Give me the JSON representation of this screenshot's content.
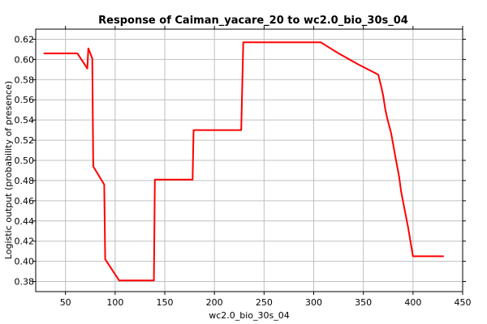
{
  "chart_data": {
    "type": "line",
    "title": "Response of Caiman_yacare_20 to wc2.0_bio_30s_04",
    "xlabel": "wc2.0_bio_30s_04",
    "ylabel": "Logistic output (probability of presence)",
    "xlim": [
      20,
      450
    ],
    "ylim": [
      0.37,
      0.63
    ],
    "x_ticks": [
      50,
      100,
      150,
      200,
      250,
      300,
      350,
      400,
      450
    ],
    "y_ticks": [
      0.38,
      0.4,
      0.42,
      0.44,
      0.46,
      0.48,
      0.5,
      0.52,
      0.54,
      0.56,
      0.58,
      0.6,
      0.62
    ],
    "grid": true,
    "series": [
      {
        "color": "#ff0000",
        "x": [
          28,
          62,
          72,
          73,
          77,
          78,
          89,
          90,
          104,
          139,
          140,
          178,
          179,
          227,
          229,
          307,
          325,
          345,
          365,
          368,
          370,
          372,
          374,
          378,
          382,
          386,
          388,
          395,
          400,
          431
        ],
        "y": [
          0.606,
          0.606,
          0.591,
          0.611,
          0.601,
          0.494,
          0.476,
          0.402,
          0.381,
          0.381,
          0.481,
          0.481,
          0.53,
          0.53,
          0.617,
          0.617,
          0.606,
          0.595,
          0.585,
          0.573,
          0.564,
          0.551,
          0.542,
          0.527,
          0.505,
          0.484,
          0.469,
          0.434,
          0.405,
          0.405
        ]
      }
    ]
  }
}
